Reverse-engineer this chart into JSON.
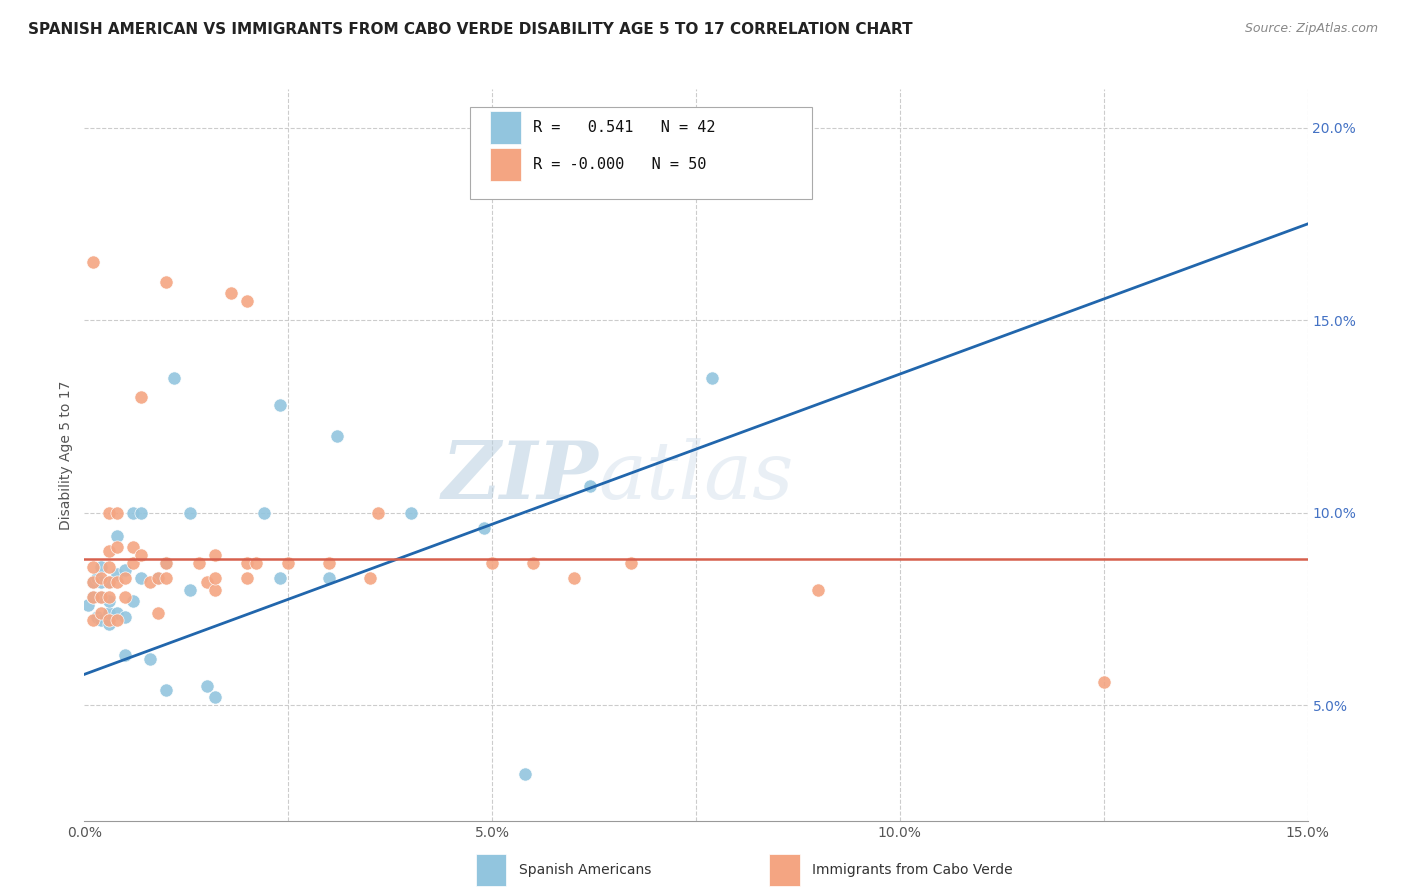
{
  "title": "SPANISH AMERICAN VS IMMIGRANTS FROM CABO VERDE DISABILITY AGE 5 TO 17 CORRELATION CHART",
  "source": "Source: ZipAtlas.com",
  "ylabel": "Disability Age 5 to 17",
  "xlim": [
    0.0,
    0.15
  ],
  "ylim": [
    0.02,
    0.21
  ],
  "xticks": [
    0.0,
    0.025,
    0.05,
    0.075,
    0.1,
    0.125,
    0.15
  ],
  "xticklabels": [
    "0.0%",
    "",
    "5.0%",
    "",
    "10.0%",
    "",
    "15.0%"
  ],
  "yticks_right": [
    0.05,
    0.1,
    0.15,
    0.2
  ],
  "yticklabels_right": [
    "5.0%",
    "10.0%",
    "15.0%",
    "20.0%"
  ],
  "legend1_r": " 0.541",
  "legend1_n": "42",
  "legend2_r": "-0.000",
  "legend2_n": "50",
  "legend_label1": "Spanish Americans",
  "legend_label2": "Immigrants from Cabo Verde",
  "blue_color": "#92c5de",
  "pink_color": "#f4a582",
  "blue_line_color": "#2166ac",
  "pink_line_color": "#d6604d",
  "watermark_zip": "ZIP",
  "watermark_atlas": "atlas",
  "title_fontsize": 11,
  "source_fontsize": 9,
  "blue_x": [
    0.0005,
    0.001,
    0.001,
    0.0015,
    0.0015,
    0.002,
    0.002,
    0.002,
    0.002,
    0.003,
    0.003,
    0.003,
    0.003,
    0.004,
    0.004,
    0.004,
    0.005,
    0.005,
    0.005,
    0.006,
    0.006,
    0.007,
    0.007,
    0.008,
    0.009,
    0.01,
    0.01,
    0.011,
    0.013,
    0.013,
    0.015,
    0.016,
    0.022,
    0.024,
    0.024,
    0.03,
    0.031,
    0.04,
    0.049,
    0.054,
    0.062,
    0.077
  ],
  "blue_y": [
    0.076,
    0.078,
    0.082,
    0.073,
    0.083,
    0.072,
    0.078,
    0.082,
    0.086,
    0.071,
    0.074,
    0.077,
    0.082,
    0.074,
    0.084,
    0.094,
    0.063,
    0.073,
    0.085,
    0.077,
    0.1,
    0.083,
    0.1,
    0.062,
    0.083,
    0.054,
    0.087,
    0.135,
    0.08,
    0.1,
    0.055,
    0.052,
    0.1,
    0.083,
    0.128,
    0.083,
    0.12,
    0.1,
    0.096,
    0.032,
    0.107,
    0.135
  ],
  "pink_x": [
    0.001,
    0.001,
    0.001,
    0.001,
    0.001,
    0.002,
    0.002,
    0.002,
    0.003,
    0.003,
    0.003,
    0.003,
    0.003,
    0.003,
    0.004,
    0.004,
    0.004,
    0.004,
    0.005,
    0.005,
    0.006,
    0.006,
    0.007,
    0.007,
    0.008,
    0.009,
    0.009,
    0.01,
    0.01,
    0.01,
    0.014,
    0.015,
    0.016,
    0.016,
    0.016,
    0.018,
    0.02,
    0.02,
    0.02,
    0.021,
    0.025,
    0.03,
    0.035,
    0.036,
    0.05,
    0.055,
    0.06,
    0.067,
    0.09,
    0.125
  ],
  "pink_y": [
    0.072,
    0.078,
    0.082,
    0.086,
    0.165,
    0.074,
    0.078,
    0.083,
    0.072,
    0.078,
    0.082,
    0.086,
    0.09,
    0.1,
    0.072,
    0.082,
    0.091,
    0.1,
    0.078,
    0.083,
    0.087,
    0.091,
    0.089,
    0.13,
    0.082,
    0.074,
    0.083,
    0.083,
    0.087,
    0.16,
    0.087,
    0.082,
    0.08,
    0.083,
    0.089,
    0.157,
    0.083,
    0.155,
    0.087,
    0.087,
    0.087,
    0.087,
    0.083,
    0.1,
    0.087,
    0.087,
    0.083,
    0.087,
    0.08,
    0.056
  ],
  "blue_trendline_x": [
    0.0,
    0.15
  ],
  "blue_trendline_y": [
    0.058,
    0.175
  ],
  "pink_trendline_x": [
    0.0,
    0.15
  ],
  "pink_trendline_y": [
    0.088,
    0.088
  ]
}
